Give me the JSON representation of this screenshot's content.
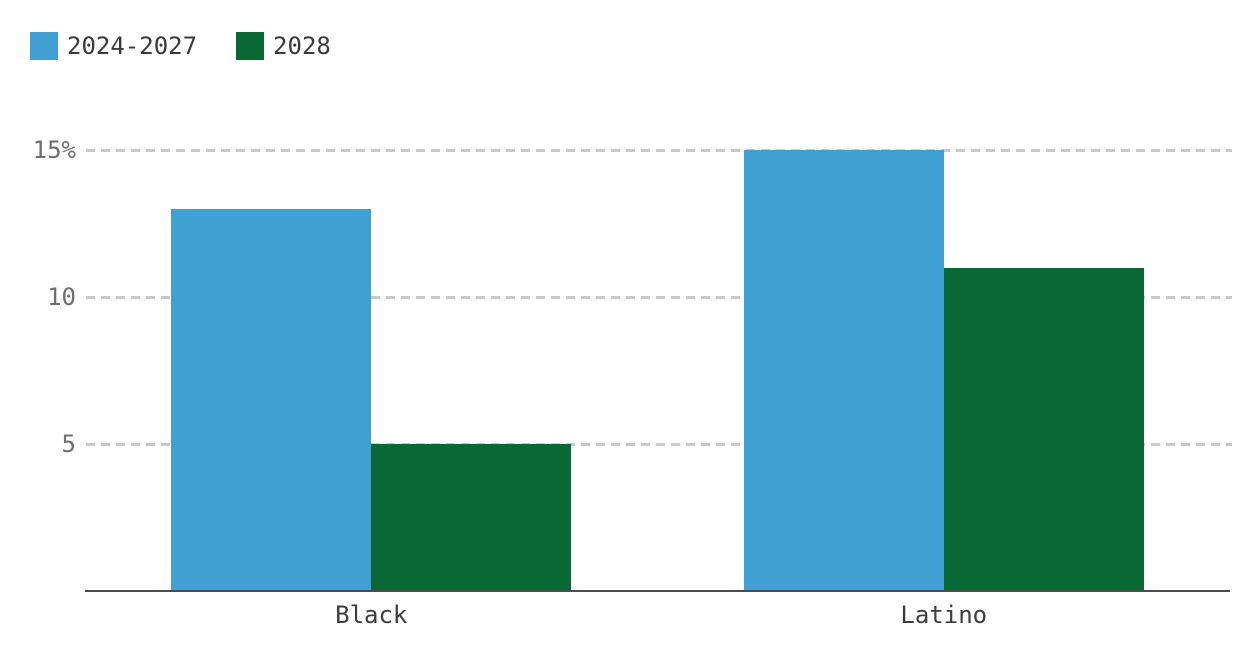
{
  "legend": {
    "items": [
      {
        "label": "2024-2027",
        "color": "#41A0D3"
      },
      {
        "label": "2028",
        "color": "#0A6834"
      }
    ]
  },
  "chart_data": {
    "type": "bar",
    "categories": [
      "Black",
      "Latino"
    ],
    "series": [
      {
        "name": "2024-2027",
        "color": "#41A0D3",
        "values": [
          13,
          15
        ]
      },
      {
        "name": "2028",
        "color": "#0A6834",
        "values": [
          5,
          11
        ]
      }
    ],
    "title": "",
    "xlabel": "",
    "ylabel": "",
    "unit": "percent",
    "ylim": [
      0,
      15
    ],
    "yticks": [
      {
        "value": 15,
        "label": "15%"
      },
      {
        "value": 10,
        "label": "10"
      },
      {
        "value": 5,
        "label": "5"
      }
    ],
    "grid": "horizontal-dashed",
    "legend_position": "top-left"
  },
  "colors": {
    "grid": "#C9C9C9",
    "axis": "#4D4D4D",
    "tick_text": "#6E6E6E",
    "category_text": "#3D3D3D",
    "legend_text": "#3A3A3A"
  }
}
